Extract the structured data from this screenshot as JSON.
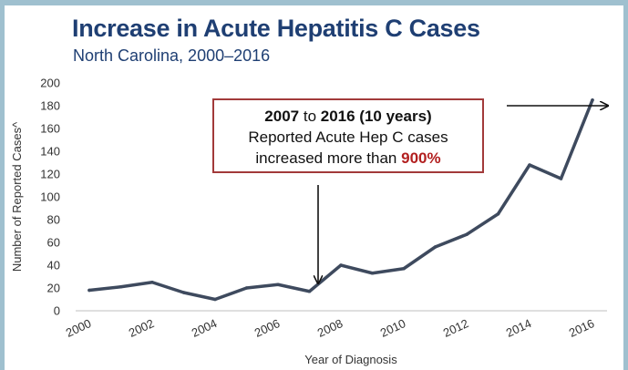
{
  "header": {
    "title": "Increase in Acute Hepatitis C Cases",
    "subtitle": "North Carolina, 2000–2016"
  },
  "callout": {
    "year_start": "2007",
    "connector": "to",
    "year_end": "2016 (10 years)",
    "line2": "Reported Acute Hep C cases",
    "line3_prefix": "increased more than",
    "highlight": "900%"
  },
  "colors": {
    "title": "#1f3f73",
    "line": "#3e4a5e",
    "callout_border": "#a23a3a",
    "highlight": "#b21f1f",
    "frame": "#9fc0cf"
  },
  "chart_data": {
    "type": "line",
    "title": "",
    "xlabel": "Year of Diagnosis",
    "ylabel": "Number of Reported Cases^",
    "x": [
      2000,
      2001,
      2002,
      2003,
      2004,
      2005,
      2006,
      2007,
      2008,
      2009,
      2010,
      2011,
      2012,
      2013,
      2014,
      2015,
      2016
    ],
    "values": [
      18,
      21,
      25,
      16,
      10,
      20,
      23,
      17,
      40,
      33,
      37,
      56,
      67,
      85,
      128,
      116,
      185
    ],
    "ylim": [
      0,
      200
    ],
    "yticks": [
      0,
      20,
      40,
      60,
      80,
      100,
      120,
      140,
      160,
      180,
      200
    ],
    "xticks": [
      "2000",
      "2002",
      "2004",
      "2006",
      "2008",
      "2010",
      "2012",
      "2014",
      "2016"
    ],
    "grid": false,
    "legend": "none"
  }
}
